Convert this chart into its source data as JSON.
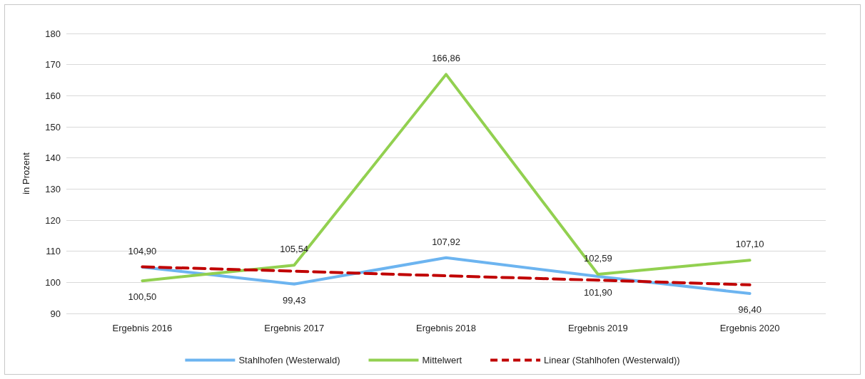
{
  "chart_data": {
    "type": "line",
    "ylabel": "in Prozent",
    "categories": [
      "Ergebnis 2016",
      "Ergebnis 2017",
      "Ergebnis 2018",
      "Ergebnis 2019",
      "Ergebnis 2020"
    ],
    "series": [
      {
        "name": "Stahlhofen (Westerwald)",
        "color": "#6cb4f0",
        "values": [
          104.9,
          99.43,
          107.92,
          101.9,
          96.4
        ],
        "value_labels": [
          "104,90",
          "99,43",
          "107,92",
          "101,90",
          "96,40"
        ]
      },
      {
        "name": "Mittelwert",
        "color": "#92d050",
        "values": [
          100.5,
          105.54,
          166.86,
          102.59,
          107.1
        ],
        "value_labels": [
          "100,50",
          "105,54",
          "166,86",
          "102,59",
          "107,10"
        ]
      },
      {
        "name": "Linear (Stahlhofen (Westerwald))",
        "color": "#c00000",
        "line_style": "dashed",
        "values": [
          105.0,
          103.6,
          102.1,
          100.7,
          99.2
        ]
      }
    ],
    "ylim": [
      90,
      180
    ],
    "yticks": [
      90,
      100,
      110,
      120,
      130,
      140,
      150,
      160,
      170,
      180
    ],
    "grid": "y",
    "legend": "bottom",
    "marker": "none",
    "line_style": "solid"
  }
}
